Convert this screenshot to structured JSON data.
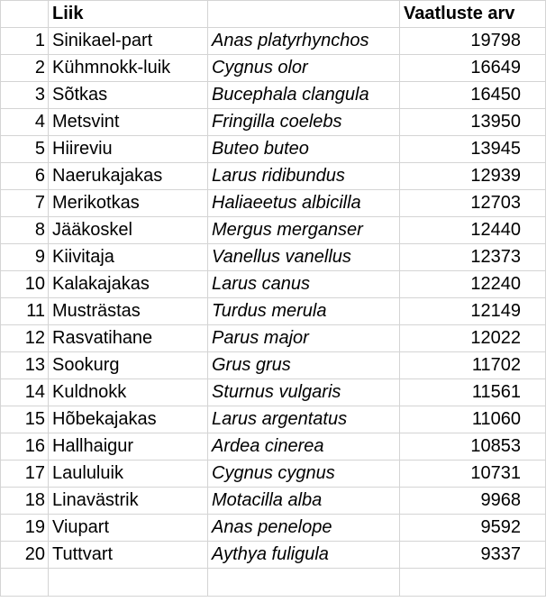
{
  "header": {
    "species": "Liik",
    "latin": "",
    "count": "Vaatluste arv"
  },
  "rows": [
    {
      "rank": "1",
      "name": "Sinikael-part",
      "latin": "Anas platyrhynchos",
      "count": "19798"
    },
    {
      "rank": "2",
      "name": "Kühmnokk-luik",
      "latin": "Cygnus olor",
      "count": "16649"
    },
    {
      "rank": "3",
      "name": "Sõtkas",
      "latin": "Bucephala clangula",
      "count": "16450"
    },
    {
      "rank": "4",
      "name": "Metsvint",
      "latin": "Fringilla coelebs",
      "count": "13950"
    },
    {
      "rank": "5",
      "name": "Hiireviu",
      "latin": "Buteo buteo",
      "count": "13945"
    },
    {
      "rank": "6",
      "name": "Naerukajakas",
      "latin": "Larus ridibundus",
      "count": "12939"
    },
    {
      "rank": "7",
      "name": "Merikotkas",
      "latin": "Haliaeetus albicilla",
      "count": "12703"
    },
    {
      "rank": "8",
      "name": "Jääkoskel",
      "latin": "Mergus merganser",
      "count": "12440"
    },
    {
      "rank": "9",
      "name": "Kiivitaja",
      "latin": "Vanellus vanellus",
      "count": "12373"
    },
    {
      "rank": "10",
      "name": "Kalakajakas",
      "latin": "Larus canus",
      "count": "12240"
    },
    {
      "rank": "11",
      "name": "Musträstas",
      "latin": "Turdus merula",
      "count": "12149"
    },
    {
      "rank": "12",
      "name": "Rasvatihane",
      "latin": "Parus major",
      "count": "12022"
    },
    {
      "rank": "13",
      "name": "Sookurg",
      "latin": "Grus grus",
      "count": "11702"
    },
    {
      "rank": "14",
      "name": "Kuldnokk",
      "latin": "Sturnus vulgaris",
      "count": "11561"
    },
    {
      "rank": "15",
      "name": "Hõbekajakas",
      "latin": "Larus argentatus",
      "count": "11060"
    },
    {
      "rank": "16",
      "name": "Hallhaigur",
      "latin": "Ardea cinerea",
      "count": "10853"
    },
    {
      "rank": "17",
      "name": "Laululuik",
      "latin": "Cygnus cygnus",
      "count": "10731"
    },
    {
      "rank": "18",
      "name": "Linavästrik",
      "latin": "Motacilla alba",
      "count": "9968"
    },
    {
      "rank": "19",
      "name": "Viupart",
      "latin": "Anas penelope",
      "count": "9592"
    },
    {
      "rank": "20",
      "name": "Tuttvart",
      "latin": "Aythya fuligula",
      "count": "9337"
    }
  ]
}
